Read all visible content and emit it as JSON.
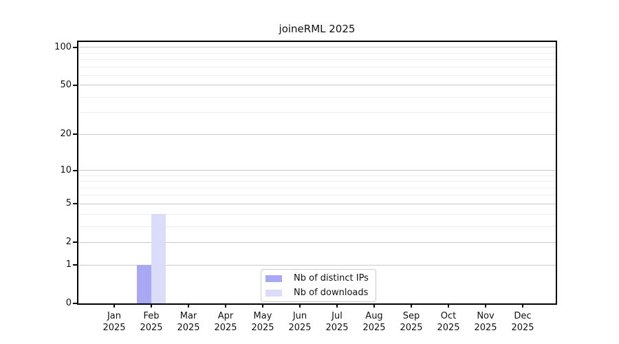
{
  "chart_data": {
    "type": "bar",
    "title": "joineRML 2025",
    "categories": [
      "Jan 2025",
      "Feb 2025",
      "Mar 2025",
      "Apr 2025",
      "May 2025",
      "Jun 2025",
      "Jul 2025",
      "Aug 2025",
      "Sep 2025",
      "Oct 2025",
      "Nov 2025",
      "Dec 2025"
    ],
    "series": [
      {
        "name": "Nb of distinct IPs",
        "color": "#a8a8f3",
        "values": [
          0,
          1,
          0,
          0,
          0,
          0,
          0,
          0,
          0,
          0,
          0,
          0
        ]
      },
      {
        "name": "Nb of downloads",
        "color": "#dbdbfa",
        "values": [
          0,
          4,
          0,
          0,
          0,
          0,
          0,
          0,
          0,
          0,
          0,
          0
        ]
      }
    ],
    "xlabel": "",
    "ylabel": "",
    "yscale": "log1p",
    "ylim": [
      0,
      110
    ],
    "y_ticks": [
      0,
      1,
      2,
      5,
      10,
      20,
      50,
      100
    ],
    "y_minor_gridlines": [
      3,
      4,
      6,
      7,
      8,
      9,
      30,
      40,
      60,
      70,
      80,
      90
    ],
    "grid": "horizontal",
    "legend_position": "inside-bottom-center"
  },
  "legend": {
    "entries": [
      "Nb of distinct IPs",
      "Nb of downloads"
    ]
  },
  "colors": {
    "spine": "#000000",
    "grid_major": "#c9c9c9",
    "grid_minor": "#ededed",
    "text": "#111111",
    "legend_border": "#cccccc",
    "background": "#ffffff"
  }
}
